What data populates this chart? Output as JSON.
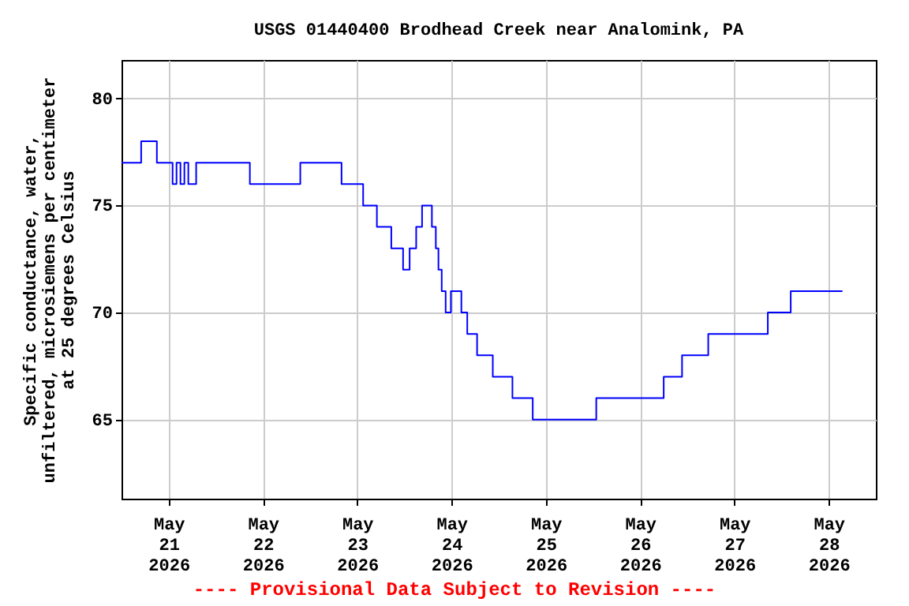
{
  "chart_data": {
    "type": "step",
    "title": "USGS 01440400 Brodhead Creek near Analomink, PA",
    "ylabel": "Specific conductance, water,\nunfiltered, microsiemens per centimeter\nat 25 degrees Celsius",
    "annotations": [
      "---- Provisional Data Subject to Revision ----"
    ],
    "x": [
      "2026-05-20T12:00",
      "2026-05-20T17:00",
      "2026-05-20T21:00",
      "2026-05-21T01:00",
      "2026-05-21T02:00",
      "2026-05-21T03:00",
      "2026-05-21T04:00",
      "2026-05-21T05:00",
      "2026-05-21T07:00",
      "2026-05-21T20:40",
      "2026-05-22T09:30",
      "2026-05-22T20:00",
      "2026-05-23T01:30",
      "2026-05-23T05:00",
      "2026-05-23T08:40",
      "2026-05-23T11:40",
      "2026-05-23T13:20",
      "2026-05-23T15:00",
      "2026-05-23T16:30",
      "2026-05-23T19:00",
      "2026-05-23T20:00",
      "2026-05-23T20:40",
      "2026-05-23T21:30",
      "2026-05-23T22:30",
      "2026-05-23T23:50",
      "2026-05-24T02:30",
      "2026-05-24T04:00",
      "2026-05-24T06:30",
      "2026-05-24T10:30",
      "2026-05-24T15:30",
      "2026-05-24T20:40",
      "2026-05-25T12:50",
      "2026-05-26T06:00",
      "2026-05-26T10:40",
      "2026-05-26T17:20",
      "2026-05-27T08:30",
      "2026-05-27T14:20",
      "2026-05-28T03:30"
    ],
    "series": [
      {
        "color": "#0000ff",
        "values": [
          77,
          78,
          77,
          76,
          77,
          76,
          77,
          76,
          77,
          76,
          77,
          76,
          75,
          74,
          73,
          72,
          73,
          74,
          75,
          74,
          73,
          72,
          71,
          70,
          71,
          70,
          69,
          68,
          67,
          66,
          65,
          66,
          67,
          68,
          69,
          70,
          71,
          71
        ]
      }
    ],
    "xlim": [
      "2026-05-20T12:00",
      "2026-05-28T12:00"
    ],
    "xticks": [
      {
        "value": "2026-05-21T00:00",
        "label": "May\n21\n2026"
      },
      {
        "value": "2026-05-22T00:00",
        "label": "May\n22\n2026"
      },
      {
        "value": "2026-05-23T00:00",
        "label": "May\n23\n2026"
      },
      {
        "value": "2026-05-24T00:00",
        "label": "May\n24\n2026"
      },
      {
        "value": "2026-05-25T00:00",
        "label": "May\n25\n2026"
      },
      {
        "value": "2026-05-26T00:00",
        "label": "May\n26\n2026"
      },
      {
        "value": "2026-05-27T00:00",
        "label": "May\n27\n2026"
      },
      {
        "value": "2026-05-28T00:00",
        "label": "May\n28\n2026"
      }
    ],
    "ylim": [
      61.3,
      81.8
    ],
    "yticks": [
      65,
      70,
      75,
      80
    ],
    "grid": true
  }
}
